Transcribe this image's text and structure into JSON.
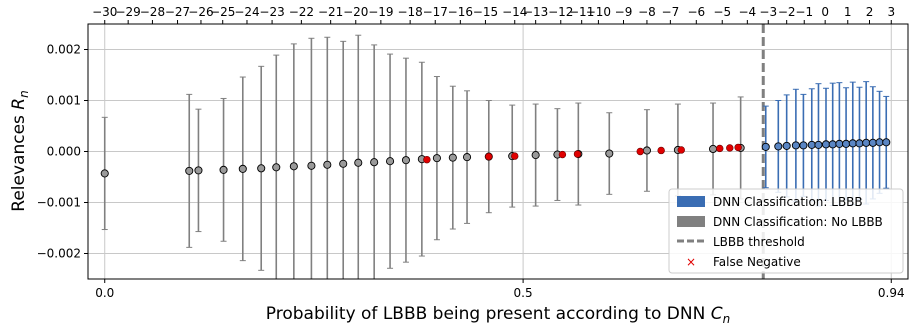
{
  "chart_data": {
    "type": "scatter",
    "title": "",
    "xlabel": "Probability of LBBB being present according to DNN ",
    "xlabel_symbol": "C",
    "xlabel_subscript": "n",
    "ylabel": "Relevances ",
    "ylabel_symbol": "R",
    "ylabel_subscript": "n",
    "xlim": [
      -0.02,
      0.96
    ],
    "ylim": [
      -0.0025,
      0.0025
    ],
    "x_ticks": [
      {
        "value": 0.0,
        "label": "0.0"
      },
      {
        "value": 0.5,
        "label": "0.5"
      },
      {
        "value": 0.94,
        "label": "0.94"
      }
    ],
    "y_ticks": [
      {
        "value": 0.002,
        "label": "0.002"
      },
      {
        "value": 0.001,
        "label": "0.001"
      },
      {
        "value": 0.0,
        "label": "0.000"
      },
      {
        "value": -0.001,
        "label": "−0.001"
      },
      {
        "value": -0.002,
        "label": "−0.002"
      }
    ],
    "top_axis": {
      "labels": [
        "−30",
        "−29",
        "−28",
        "−27",
        "−26",
        "−25",
        "−24",
        "−23",
        "−22",
        "−21",
        "−20",
        "−19",
        "−18",
        "−17",
        "−16",
        "−15",
        "−14",
        "−13",
        "−12",
        "−11",
        "−10",
        "−9",
        "−8",
        "−7",
        "−6",
        "−5",
        "−4",
        "−3",
        "−2",
        "−1",
        "0",
        "1",
        "2",
        "3"
      ],
      "values": [
        0.0,
        0.028,
        0.057,
        0.087,
        0.115,
        0.141,
        0.17,
        0.2,
        0.235,
        0.27,
        0.3,
        0.33,
        0.365,
        0.395,
        0.425,
        0.455,
        0.49,
        0.515,
        0.545,
        0.57,
        0.59,
        0.62,
        0.648,
        0.676,
        0.707,
        0.738,
        0.768,
        0.793,
        0.815,
        0.836,
        0.861,
        0.888,
        0.914,
        0.94
      ]
    },
    "threshold": {
      "x": 0.787,
      "label": "LBBB threshold"
    },
    "legend": {
      "placement": "lower-right",
      "entries": [
        {
          "label": "DNN Classification: LBBB",
          "color": "#3a6db3",
          "marker": "patch"
        },
        {
          "label": "DNN Classification: No LBBB",
          "color": "#808080",
          "marker": "patch"
        },
        {
          "label": "LBBB threshold",
          "color": "#808080",
          "marker": "dashed-line"
        },
        {
          "label": "False Negative",
          "color": "#e00000",
          "marker": "x"
        }
      ]
    },
    "grid": true,
    "series": [
      {
        "name": "DNN Classification: No LBBB",
        "color": "#808080",
        "points": [
          {
            "x": 0.0,
            "y": -0.00043,
            "err": 0.0011
          },
          {
            "x": 0.101,
            "y": -0.00038,
            "err": 0.0015
          },
          {
            "x": 0.112,
            "y": -0.00037,
            "err": 0.0012
          },
          {
            "x": 0.142,
            "y": -0.00036,
            "err": 0.0014
          },
          {
            "x": 0.165,
            "y": -0.00034,
            "err": 0.0018
          },
          {
            "x": 0.187,
            "y": -0.00033,
            "err": 0.002
          },
          {
            "x": 0.205,
            "y": -0.00031,
            "err": 0.0022
          },
          {
            "x": 0.226,
            "y": -0.00029,
            "err": 0.0024
          },
          {
            "x": 0.247,
            "y": -0.00028,
            "err": 0.0025
          },
          {
            "x": 0.266,
            "y": -0.00026,
            "err": 0.0025
          },
          {
            "x": 0.285,
            "y": -0.00024,
            "err": 0.0024
          },
          {
            "x": 0.303,
            "y": -0.00022,
            "err": 0.0025
          },
          {
            "x": 0.322,
            "y": -0.00021,
            "err": 0.0023
          },
          {
            "x": 0.341,
            "y": -0.00019,
            "err": 0.0021
          },
          {
            "x": 0.36,
            "y": -0.00017,
            "err": 0.002
          },
          {
            "x": 0.379,
            "y": -0.00015,
            "err": 0.0019
          },
          {
            "x": 0.397,
            "y": -0.00013,
            "err": 0.0016
          },
          {
            "x": 0.416,
            "y": -0.00012,
            "err": 0.0014
          },
          {
            "x": 0.433,
            "y": -0.00011,
            "err": 0.0013
          },
          {
            "x": 0.459,
            "y": -0.0001,
            "err": 0.0011
          },
          {
            "x": 0.487,
            "y": -9e-05,
            "err": 0.001
          },
          {
            "x": 0.515,
            "y": -7e-05,
            "err": 0.001
          },
          {
            "x": 0.541,
            "y": -6e-05,
            "err": 0.0009
          },
          {
            "x": 0.566,
            "y": -5e-05,
            "err": 0.001
          },
          {
            "x": 0.603,
            "y": -4e-05,
            "err": 0.0008
          },
          {
            "x": 0.648,
            "y": 2e-05,
            "err": 0.0008
          },
          {
            "x": 0.685,
            "y": 3e-05,
            "err": 0.0009
          },
          {
            "x": 0.727,
            "y": 5e-05,
            "err": 0.0009
          },
          {
            "x": 0.76,
            "y": 7e-05,
            "err": 0.001
          }
        ]
      },
      {
        "name": "DNN Classification: LBBB",
        "color": "#3a6db3",
        "points": [
          {
            "x": 0.79,
            "y": 9e-05,
            "err": 0.0008
          },
          {
            "x": 0.805,
            "y": 0.0001,
            "err": 0.0009
          },
          {
            "x": 0.815,
            "y": 0.00011,
            "err": 0.001
          },
          {
            "x": 0.826,
            "y": 0.00012,
            "err": 0.0011
          },
          {
            "x": 0.835,
            "y": 0.00012,
            "err": 0.001
          },
          {
            "x": 0.845,
            "y": 0.00013,
            "err": 0.0011
          },
          {
            "x": 0.853,
            "y": 0.00013,
            "err": 0.0012
          },
          {
            "x": 0.862,
            "y": 0.00014,
            "err": 0.0011
          },
          {
            "x": 0.87,
            "y": 0.00014,
            "err": 0.0012
          },
          {
            "x": 0.878,
            "y": 0.00015,
            "err": 0.0012
          },
          {
            "x": 0.886,
            "y": 0.00015,
            "err": 0.0011
          },
          {
            "x": 0.894,
            "y": 0.00016,
            "err": 0.0012
          },
          {
            "x": 0.902,
            "y": 0.00016,
            "err": 0.0011
          },
          {
            "x": 0.91,
            "y": 0.00017,
            "err": 0.0012
          },
          {
            "x": 0.918,
            "y": 0.00017,
            "err": 0.0011
          },
          {
            "x": 0.926,
            "y": 0.00018,
            "err": 0.001
          },
          {
            "x": 0.934,
            "y": 0.00018,
            "err": 0.0009
          }
        ]
      },
      {
        "name": "False Negative",
        "color": "#e00000",
        "points": [
          {
            "x": 0.385,
            "y": -0.00016
          },
          {
            "x": 0.459,
            "y": -0.0001
          },
          {
            "x": 0.49,
            "y": -9e-05
          },
          {
            "x": 0.547,
            "y": -6e-05
          },
          {
            "x": 0.565,
            "y": -5e-05
          },
          {
            "x": 0.64,
            "y": 0.0
          },
          {
            "x": 0.665,
            "y": 2e-05
          },
          {
            "x": 0.689,
            "y": 3e-05
          },
          {
            "x": 0.735,
            "y": 6e-05
          },
          {
            "x": 0.747,
            "y": 7e-05
          },
          {
            "x": 0.757,
            "y": 8e-05
          }
        ]
      }
    ]
  }
}
